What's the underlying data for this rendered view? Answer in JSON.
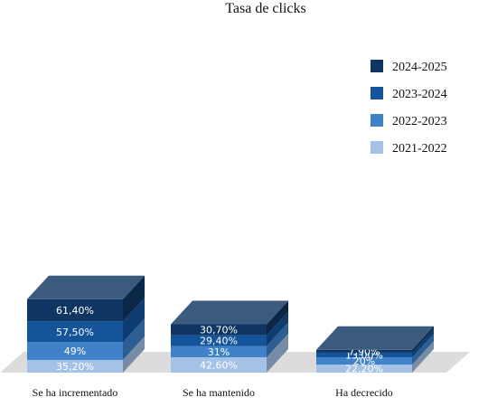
{
  "chart_data": {
    "type": "bar",
    "stacked": true,
    "style": "3d",
    "title": "Tasa de clicks",
    "categories": [
      "Se ha incrementado",
      "Se ha mantenido",
      "Ha decrecido"
    ],
    "series": [
      {
        "name": "2021-2022",
        "color": "#a4c2e6",
        "values": [
          35.2,
          42.6,
          22.2
        ],
        "labels": [
          "35,20%",
          "42,60%",
          "22,20%"
        ]
      },
      {
        "name": "2022-2023",
        "color": "#3f82c9",
        "values": [
          49,
          31,
          20
        ],
        "labels": [
          "49%",
          "31%",
          "20%"
        ]
      },
      {
        "name": "2023-2024",
        "color": "#14549a",
        "values": [
          57.5,
          29.4,
          13.0
        ],
        "labels": [
          "57,50%",
          "29,40%",
          "13,00%"
        ]
      },
      {
        "name": "2024-2025",
        "color": "#0f3662",
        "values": [
          61.4,
          30.7,
          7.9
        ],
        "labels": [
          "61,40%",
          "30,70%",
          "7,90%"
        ]
      }
    ],
    "legend_position": "top-right",
    "legend_order": [
      "2024-2025",
      "2023-2024",
      "2022-2023",
      "2021-2022"
    ],
    "grid": false
  }
}
